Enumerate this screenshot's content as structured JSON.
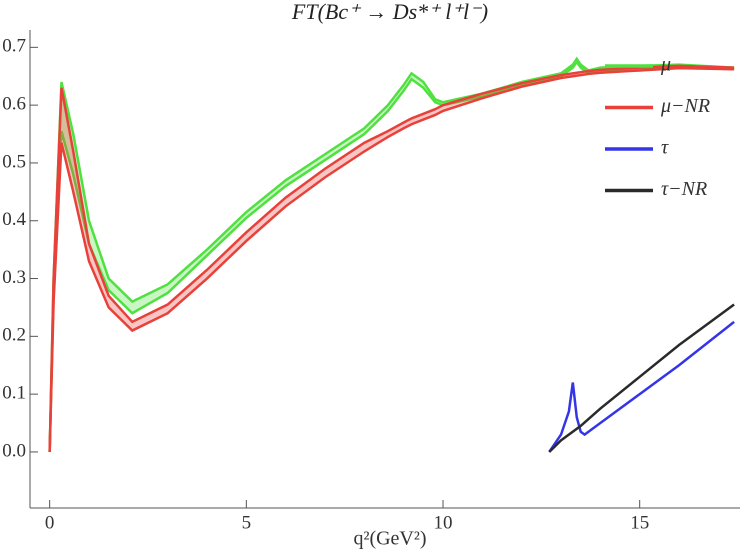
{
  "chart_data": {
    "type": "line",
    "title": "FT(Bc⁺ → Ds*⁺ l⁺l⁻)",
    "x_label": "q²(GeV²)",
    "xlim": [
      -0.5,
      17.55
    ],
    "ylim": [
      -0.097,
      0.73
    ],
    "xticks": [
      0,
      5,
      10,
      15
    ],
    "yticks": [
      {
        "value": 0,
        "label": "0.0"
      },
      0.1,
      0.2,
      0.3,
      0.4,
      0.5,
      0.6,
      0.7
    ],
    "legend": "upper right",
    "series": [
      {
        "name": "μ",
        "color": "#50e040",
        "x": [
          0,
          0.1,
          0.3,
          0.6,
          1,
          1.5,
          2.1,
          3,
          4,
          5,
          6,
          7,
          8,
          8.6,
          9,
          9.2,
          9.5,
          9.8,
          10,
          11,
          12,
          13,
          13.3,
          13.4,
          13.5,
          13.7,
          14,
          15,
          16,
          17.4
        ],
        "values": [
          0,
          0.3,
          0.64,
          0.55,
          0.4,
          0.3,
          0.26,
          0.29,
          0.35,
          0.415,
          0.47,
          0.515,
          0.56,
          0.6,
          0.635,
          0.655,
          0.64,
          0.61,
          0.605,
          0.62,
          0.64,
          0.655,
          0.67,
          0.68,
          0.67,
          0.66,
          0.665,
          0.668,
          0.67,
          0.665
        ],
        "lower": [
          0,
          0.27,
          0.555,
          0.48,
          0.36,
          0.28,
          0.24,
          0.275,
          0.34,
          0.405,
          0.46,
          0.505,
          0.55,
          0.59,
          0.625,
          0.645,
          0.63,
          0.605,
          0.6,
          0.615,
          0.635,
          0.65,
          0.665,
          0.675,
          0.665,
          0.655,
          0.66,
          0.664,
          0.666,
          0.662
        ]
      },
      {
        "name": "μ−NR",
        "color": "#e8413a",
        "x": [
          0,
          0.1,
          0.3,
          0.6,
          1,
          1.5,
          2.1,
          3,
          4,
          5,
          6,
          7,
          8,
          8.6,
          9,
          9.2,
          9.5,
          9.8,
          10,
          11,
          12,
          13,
          13.3,
          13.4,
          13.5,
          13.7,
          14,
          15,
          16,
          17.4
        ],
        "values": [
          0,
          0.3,
          0.63,
          0.52,
          0.36,
          0.27,
          0.225,
          0.255,
          0.315,
          0.38,
          0.44,
          0.49,
          0.535,
          0.555,
          0.57,
          0.577,
          0.585,
          0.593,
          0.6,
          0.62,
          0.638,
          0.652,
          0.655,
          0.656,
          0.657,
          0.659,
          0.661,
          0.665,
          0.668,
          0.665
        ],
        "lower": [
          0,
          0.26,
          0.535,
          0.45,
          0.33,
          0.25,
          0.21,
          0.24,
          0.3,
          0.365,
          0.425,
          0.475,
          0.52,
          0.545,
          0.56,
          0.567,
          0.575,
          0.583,
          0.59,
          0.612,
          0.632,
          0.647,
          0.65,
          0.651,
          0.652,
          0.654,
          0.656,
          0.66,
          0.664,
          0.662
        ]
      },
      {
        "name": "τ",
        "color": "#3535e8",
        "x": [
          12.7,
          13.0,
          13.2,
          13.3,
          13.4,
          13.5,
          13.6,
          14,
          15,
          16,
          17.4
        ],
        "values": [
          0,
          0.03,
          0.07,
          0.12,
          0.06,
          0.035,
          0.03,
          0.05,
          0.1,
          0.15,
          0.225
        ]
      },
      {
        "name": "τ−NR",
        "color": "#2a2a2a",
        "x": [
          12.7,
          13,
          13.5,
          14,
          15,
          16,
          17.4
        ],
        "values": [
          0,
          0.02,
          0.045,
          0.075,
          0.13,
          0.185,
          0.255
        ]
      }
    ]
  }
}
